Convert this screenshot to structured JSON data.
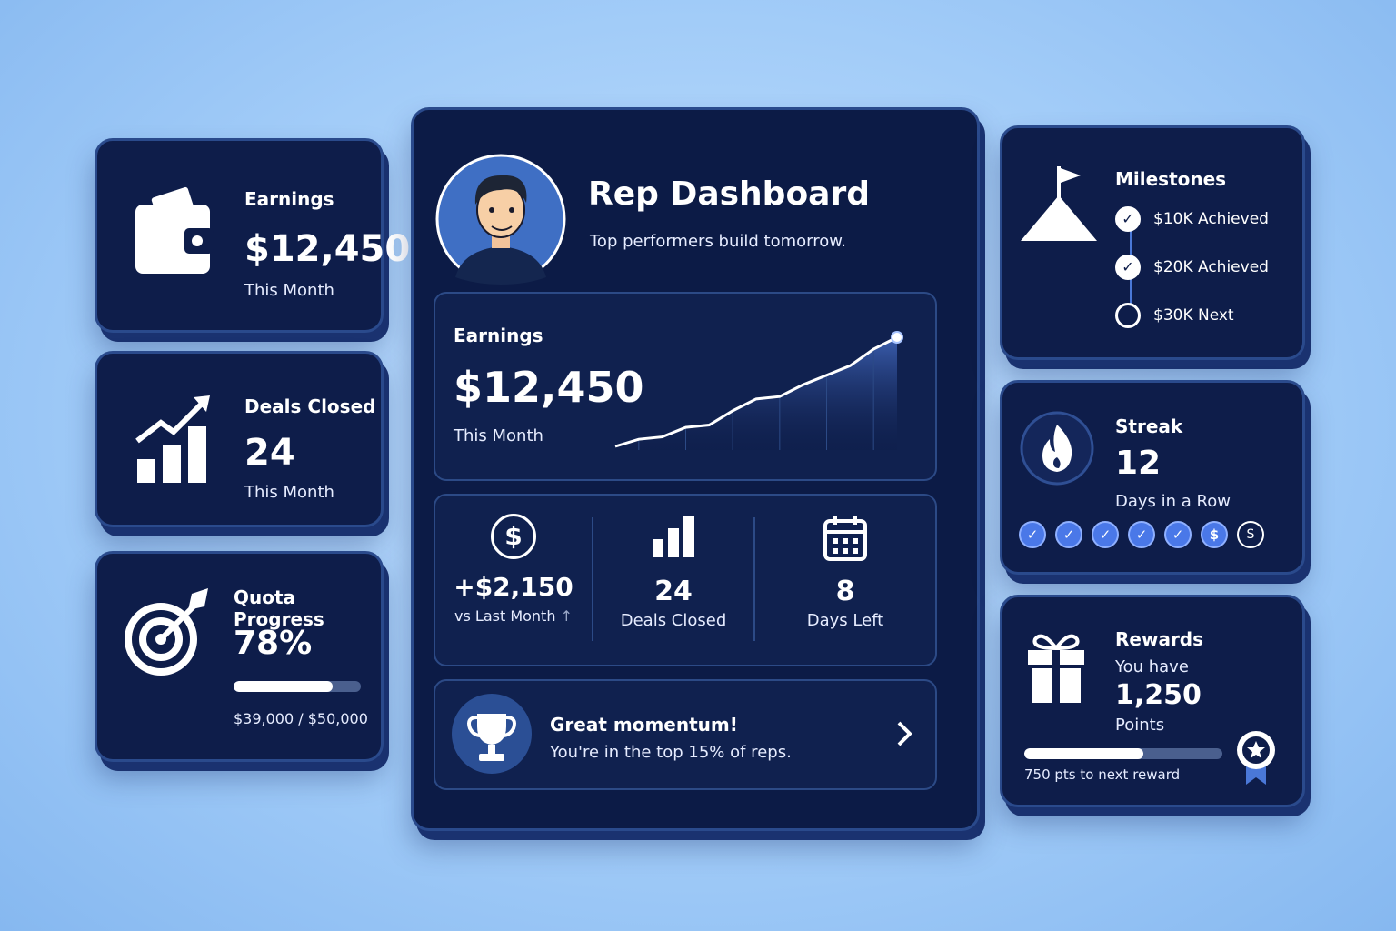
{
  "left_cards": [
    {
      "title": "Earnings",
      "value": "$12,450",
      "caption": "This Month"
    },
    {
      "title": "Deals Closed",
      "value": "24",
      "caption": "This Month"
    },
    {
      "title": "Quota Progress",
      "value": {
        "value": 78,
        "label": "78%"
      },
      "caption": "$39,000 / $50,000"
    }
  ],
  "main": {
    "title": "Rep Dashboard",
    "subtitle": "Top performers build tomorrow.",
    "earnings": {
      "title": "Earnings",
      "value": "$12,450",
      "caption": "This Month",
      "trend": [
        4,
        7,
        8,
        12,
        13,
        19,
        24,
        25,
        30,
        34,
        38,
        45,
        50
      ]
    },
    "stats": [
      {
        "icon": "$",
        "value": "+$2,150",
        "caption": "vs Last Month"
      },
      {
        "value": "24",
        "caption": "Deals Closed"
      },
      {
        "value": "8",
        "caption": "Days Left"
      }
    ],
    "banner": {
      "title": "Great momentum!",
      "text": "You're in the top 15% of reps."
    }
  },
  "milestones": {
    "title": "Milestones",
    "items": [
      "$10K Achieved",
      "$20K Achieved",
      "$30K Next"
    ]
  },
  "streak": {
    "title": "Streak",
    "value": "12",
    "caption": "Days in a Row",
    "markers": [
      "$",
      "S"
    ]
  },
  "rewards": {
    "title": "Rewards",
    "intro": "You have",
    "value": "1,250",
    "unit": "Points",
    "progress": 60,
    "caption": "750 pts to next reward"
  }
}
